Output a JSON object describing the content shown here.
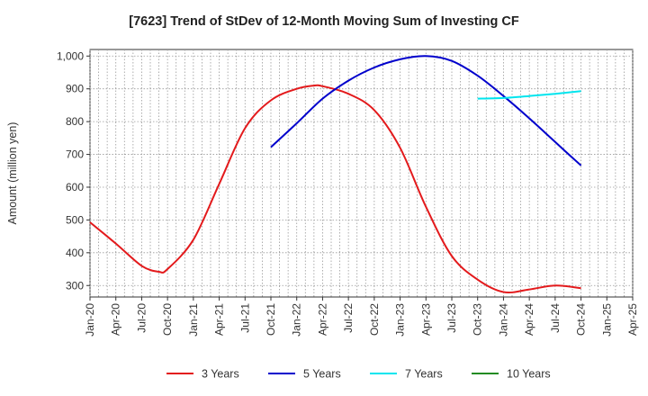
{
  "chart_data": {
    "type": "line",
    "title": "[7623]  Trend of StDev of 12-Month Moving Sum of Investing CF",
    "xlabel": "",
    "ylabel": "Amount (million yen)",
    "ylim": [
      265,
      1020
    ],
    "yticks": [
      300,
      400,
      500,
      600,
      700,
      800,
      900,
      1000
    ],
    "ytick_labels": [
      "300",
      "400",
      "500",
      "600",
      "700",
      "800",
      "900",
      "1,000"
    ],
    "xticks": [
      "Jan-20",
      "Apr-20",
      "Jul-20",
      "Oct-20",
      "Jan-21",
      "Apr-21",
      "Jul-21",
      "Oct-21",
      "Jan-22",
      "Apr-22",
      "Jul-22",
      "Oct-22",
      "Jan-23",
      "Apr-23",
      "Jul-23",
      "Oct-23",
      "Jan-24",
      "Apr-24",
      "Jul-24",
      "Oct-24",
      "Jan-25",
      "Apr-25"
    ],
    "grid": true,
    "legend_position": "bottom",
    "series": [
      {
        "name": "3 Years",
        "color": "#e31a1c",
        "points": [
          [
            "Jan-20",
            493
          ],
          [
            "Apr-20",
            428
          ],
          [
            "Jul-20",
            360
          ],
          [
            "Sep-20",
            342
          ],
          [
            "Oct-20",
            350
          ],
          [
            "Jan-21",
            440
          ],
          [
            "Apr-21",
            610
          ],
          [
            "Jul-21",
            780
          ],
          [
            "Oct-21",
            865
          ],
          [
            "Jan-22",
            900
          ],
          [
            "Mar-22",
            910
          ],
          [
            "Apr-22",
            908
          ],
          [
            "Jul-22",
            885
          ],
          [
            "Oct-22",
            835
          ],
          [
            "Jan-23",
            720
          ],
          [
            "Apr-23",
            540
          ],
          [
            "Jul-23",
            390
          ],
          [
            "Oct-23",
            318
          ],
          [
            "Jan-24",
            280
          ],
          [
            "Apr-24",
            288
          ],
          [
            "Jul-24",
            300
          ],
          [
            "Oct-24",
            292
          ]
        ]
      },
      {
        "name": "5 Years",
        "color": "#0000cc",
        "points": [
          [
            "Oct-21",
            722
          ],
          [
            "Jan-22",
            795
          ],
          [
            "Apr-22",
            870
          ],
          [
            "Jul-22",
            925
          ],
          [
            "Oct-22",
            965
          ],
          [
            "Jan-23",
            990
          ],
          [
            "Apr-23",
            1000
          ],
          [
            "Jul-23",
            985
          ],
          [
            "Oct-23",
            940
          ],
          [
            "Jan-24",
            878
          ],
          [
            "Apr-24",
            810
          ],
          [
            "Jul-24",
            738
          ],
          [
            "Oct-24",
            666
          ]
        ]
      },
      {
        "name": "7 Years",
        "color": "#00e5ee",
        "points": [
          [
            "Oct-23",
            870
          ],
          [
            "Jan-24",
            872
          ],
          [
            "Apr-24",
            878
          ],
          [
            "Jul-24",
            885
          ],
          [
            "Oct-24",
            893
          ]
        ]
      },
      {
        "name": "10 Years",
        "color": "#228b22",
        "points": []
      }
    ]
  }
}
